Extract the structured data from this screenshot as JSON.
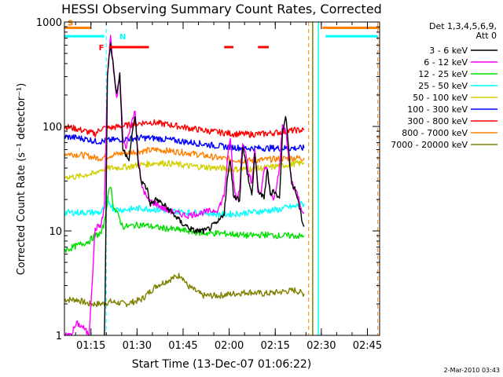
{
  "chart_data": {
    "type": "line",
    "title": "HESSI Observing Summary Count Rates, Corrected",
    "xlabel": "Start Time (13-Dec-07 01:06:22)",
    "ylabel": "Corrected Count Rate (s⁻¹ detector⁻¹)",
    "yscale": "log",
    "ylim": [
      1,
      1000
    ],
    "xlim_minutes": [
      0,
      102.6
    ],
    "y_ticks": [
      {
        "v": 1,
        "label": "1"
      },
      {
        "v": 10,
        "label": "10"
      },
      {
        "v": 100,
        "label": "100"
      },
      {
        "v": 1000,
        "label": "1000"
      }
    ],
    "x_ticks": [
      {
        "m": 8.63,
        "label": "01:15"
      },
      {
        "m": 23.63,
        "label": "01:30"
      },
      {
        "m": 38.63,
        "label": "01:45"
      },
      {
        "m": 53.63,
        "label": "02:00"
      },
      {
        "m": 68.63,
        "label": "02:15"
      },
      {
        "m": 83.63,
        "label": "02:30"
      },
      {
        "m": 98.63,
        "label": "02:45"
      }
    ],
    "legend": {
      "header": [
        "Det 1,3,4,5,6,9,",
        "Att 0"
      ],
      "position": "right, outside plot"
    },
    "series": [
      {
        "name": "3 - 6 keV",
        "color": "#000000",
        "points": [
          [
            13,
            0.3
          ],
          [
            14,
            300
          ],
          [
            15,
            650
          ],
          [
            17,
            200
          ],
          [
            18,
            320
          ],
          [
            19,
            60
          ],
          [
            21,
            50
          ],
          [
            23,
            130
          ],
          [
            24,
            45
          ],
          [
            25,
            30
          ],
          [
            27,
            25
          ],
          [
            28,
            18
          ],
          [
            30,
            20
          ],
          [
            33,
            17
          ],
          [
            36,
            14
          ],
          [
            38,
            12
          ],
          [
            40,
            11
          ],
          [
            42,
            10
          ],
          [
            44,
            10
          ],
          [
            46,
            10
          ],
          [
            48,
            11
          ],
          [
            50,
            12
          ],
          [
            52,
            15
          ],
          [
            53,
            30
          ],
          [
            54,
            50
          ],
          [
            55,
            22
          ],
          [
            57,
            20
          ],
          [
            58,
            65
          ],
          [
            59,
            45
          ],
          [
            60,
            30
          ],
          [
            61,
            22
          ],
          [
            62,
            55
          ],
          [
            63,
            25
          ],
          [
            65,
            20
          ],
          [
            66,
            40
          ],
          [
            67,
            22
          ],
          [
            68,
            25
          ],
          [
            70,
            20
          ],
          [
            71,
            90
          ],
          [
            72,
            130
          ],
          [
            73,
            60
          ],
          [
            74,
            28
          ],
          [
            75,
            25
          ],
          [
            76,
            20
          ],
          [
            77,
            14
          ],
          [
            78,
            11
          ]
        ]
      },
      {
        "name": "6 - 12 keV",
        "color": "#ff00ff",
        "points": [
          [
            0,
            1
          ],
          [
            2,
            1
          ],
          [
            4,
            1.3
          ],
          [
            6,
            1.2
          ],
          [
            8,
            1
          ],
          [
            10,
            10.5
          ],
          [
            12,
            11.5
          ],
          [
            13,
            17
          ],
          [
            14,
            300
          ],
          [
            15,
            700
          ],
          [
            16,
            350
          ],
          [
            17,
            180
          ],
          [
            18,
            320
          ],
          [
            19,
            80
          ],
          [
            20,
            60
          ],
          [
            21,
            90
          ],
          [
            23,
            140
          ],
          [
            24,
            50
          ],
          [
            25,
            28
          ],
          [
            27,
            20
          ],
          [
            30,
            18
          ],
          [
            33,
            16
          ],
          [
            36,
            15
          ],
          [
            40,
            14
          ],
          [
            45,
            15
          ],
          [
            50,
            16
          ],
          [
            52,
            22
          ],
          [
            53,
            45
          ],
          [
            54,
            80
          ],
          [
            55,
            30
          ],
          [
            56,
            20
          ],
          [
            57,
            25
          ],
          [
            58,
            70
          ],
          [
            59,
            60
          ],
          [
            60,
            35
          ],
          [
            61,
            28
          ],
          [
            62,
            60
          ],
          [
            63,
            25
          ],
          [
            64,
            22
          ],
          [
            65,
            38
          ],
          [
            66,
            42
          ],
          [
            67,
            22
          ],
          [
            68,
            20
          ],
          [
            69,
            25
          ],
          [
            70,
            40
          ],
          [
            71,
            110
          ],
          [
            72,
            90
          ],
          [
            73,
            50
          ],
          [
            74,
            30
          ],
          [
            75,
            25
          ],
          [
            76,
            22
          ],
          [
            77,
            17
          ],
          [
            78,
            15
          ]
        ]
      },
      {
        "name": "12 - 25 keV",
        "color": "#00e000",
        "points": [
          [
            0,
            6.5
          ],
          [
            4,
            7.2
          ],
          [
            8,
            8
          ],
          [
            10,
            9
          ],
          [
            12,
            9.5
          ],
          [
            13,
            12
          ],
          [
            14,
            20
          ],
          [
            15,
            28
          ],
          [
            16,
            17
          ],
          [
            17,
            15
          ],
          [
            18,
            13
          ],
          [
            19,
            11
          ],
          [
            20,
            11
          ],
          [
            25,
            11.5
          ],
          [
            30,
            10.8
          ],
          [
            35,
            10.4
          ],
          [
            40,
            10
          ],
          [
            45,
            9.5
          ],
          [
            50,
            9.5
          ],
          [
            55,
            9.3
          ],
          [
            60,
            9
          ],
          [
            65,
            9.2
          ],
          [
            70,
            9
          ],
          [
            75,
            9
          ],
          [
            78,
            8.8
          ]
        ]
      },
      {
        "name": "25 - 50 keV",
        "color": "#00ffff",
        "points": [
          [
            0,
            15
          ],
          [
            4,
            15
          ],
          [
            8,
            15
          ],
          [
            12,
            15
          ],
          [
            13,
            17
          ],
          [
            14,
            20
          ],
          [
            15,
            18
          ],
          [
            16,
            16
          ],
          [
            20,
            16
          ],
          [
            25,
            16.5
          ],
          [
            30,
            16
          ],
          [
            35,
            15.5
          ],
          [
            40,
            15
          ],
          [
            45,
            15
          ],
          [
            50,
            14.5
          ],
          [
            55,
            14.5
          ],
          [
            60,
            15
          ],
          [
            65,
            15.5
          ],
          [
            70,
            16
          ],
          [
            73,
            17
          ],
          [
            75,
            17
          ],
          [
            77,
            18
          ],
          [
            78,
            18
          ]
        ]
      },
      {
        "name": "50 - 100 keV",
        "color": "#d0d000",
        "points": [
          [
            0,
            33
          ],
          [
            4,
            33
          ],
          [
            8,
            35
          ],
          [
            10,
            35
          ],
          [
            11,
            38
          ],
          [
            15,
            40
          ],
          [
            20,
            41
          ],
          [
            25,
            43
          ],
          [
            28,
            44
          ],
          [
            30,
            45
          ],
          [
            35,
            44
          ],
          [
            40,
            42
          ],
          [
            45,
            41
          ],
          [
            50,
            40
          ],
          [
            55,
            39
          ],
          [
            60,
            39
          ],
          [
            65,
            40
          ],
          [
            70,
            42
          ],
          [
            75,
            44
          ],
          [
            78,
            45
          ]
        ]
      },
      {
        "name": "100 - 300 keV",
        "color": "#0000ff",
        "points": [
          [
            0,
            80
          ],
          [
            4,
            78
          ],
          [
            8,
            75
          ],
          [
            10,
            72
          ],
          [
            12,
            72
          ],
          [
            15,
            74
          ],
          [
            20,
            76
          ],
          [
            25,
            78
          ],
          [
            30,
            77
          ],
          [
            35,
            74
          ],
          [
            40,
            71
          ],
          [
            45,
            68
          ],
          [
            50,
            65
          ],
          [
            55,
            63
          ],
          [
            60,
            62
          ],
          [
            65,
            62
          ],
          [
            70,
            62
          ],
          [
            75,
            62
          ],
          [
            78,
            62
          ]
        ]
      },
      {
        "name": "300 - 800 keV",
        "color": "#ff0000",
        "points": [
          [
            0,
            100
          ],
          [
            4,
            95
          ],
          [
            8,
            88
          ],
          [
            10,
            85
          ],
          [
            12,
            96
          ],
          [
            15,
            97
          ],
          [
            20,
            102
          ],
          [
            25,
            108
          ],
          [
            28,
            110
          ],
          [
            30,
            108
          ],
          [
            35,
            103
          ],
          [
            40,
            97
          ],
          [
            45,
            92
          ],
          [
            50,
            88
          ],
          [
            55,
            85
          ],
          [
            60,
            84
          ],
          [
            65,
            85
          ],
          [
            70,
            88
          ],
          [
            75,
            92
          ],
          [
            78,
            92
          ]
        ]
      },
      {
        "name": "800 - 7000 keV",
        "color": "#ff8000",
        "points": [
          [
            0,
            55
          ],
          [
            4,
            54
          ],
          [
            8,
            52
          ],
          [
            10,
            50
          ],
          [
            12,
            50
          ],
          [
            15,
            53
          ],
          [
            20,
            56
          ],
          [
            25,
            58
          ],
          [
            30,
            60
          ],
          [
            35,
            58
          ],
          [
            40,
            56
          ],
          [
            45,
            53
          ],
          [
            50,
            50
          ],
          [
            55,
            48
          ],
          [
            60,
            47
          ],
          [
            65,
            48
          ],
          [
            70,
            49
          ],
          [
            75,
            50
          ],
          [
            78,
            50
          ]
        ]
      },
      {
        "name": "7000 - 20000 keV",
        "color": "#808000",
        "points": [
          [
            0,
            2.2
          ],
          [
            4,
            2.2
          ],
          [
            8,
            2
          ],
          [
            12,
            2
          ],
          [
            15,
            2.1
          ],
          [
            20,
            2
          ],
          [
            25,
            2.2
          ],
          [
            30,
            3
          ],
          [
            35,
            3.5
          ],
          [
            38,
            3.8
          ],
          [
            40,
            3
          ],
          [
            45,
            2.4
          ],
          [
            50,
            2.4
          ],
          [
            55,
            2.5
          ],
          [
            60,
            2.6
          ],
          [
            65,
            2.5
          ],
          [
            70,
            2.6
          ],
          [
            75,
            2.7
          ],
          [
            78,
            2.5
          ]
        ]
      }
    ],
    "flag_bars": [
      {
        "label": "S",
        "color": "#ff8000",
        "y": 880,
        "segments": [
          [
            0,
            8.5
          ],
          [
            84,
            102.5
          ]
        ]
      },
      {
        "label": "N",
        "color": "#00ffff",
        "y": 730,
        "segments": [
          [
            0,
            13
          ],
          [
            85,
            102
          ]
        ]
      },
      {
        "label": "F",
        "color": "#ff0000",
        "y": 575,
        "segments": [
          [
            14.5,
            27.5
          ],
          [
            52,
            55
          ],
          [
            63,
            66.5
          ]
        ]
      }
    ],
    "dashed_lines": [
      {
        "m": 0,
        "color": "#00ffff"
      },
      {
        "m": 13.6,
        "color": "#00ffff"
      },
      {
        "m": 79.5,
        "color": "#ff8000"
      },
      {
        "m": 102,
        "color": "#ff8000"
      }
    ],
    "solid_lines": [
      {
        "m": 80.8,
        "color": "#808000"
      },
      {
        "m": 82.7,
        "color": "#00ffff"
      }
    ]
  },
  "footer": {
    "date_stamp": "2-Mar-2010 03:43"
  }
}
